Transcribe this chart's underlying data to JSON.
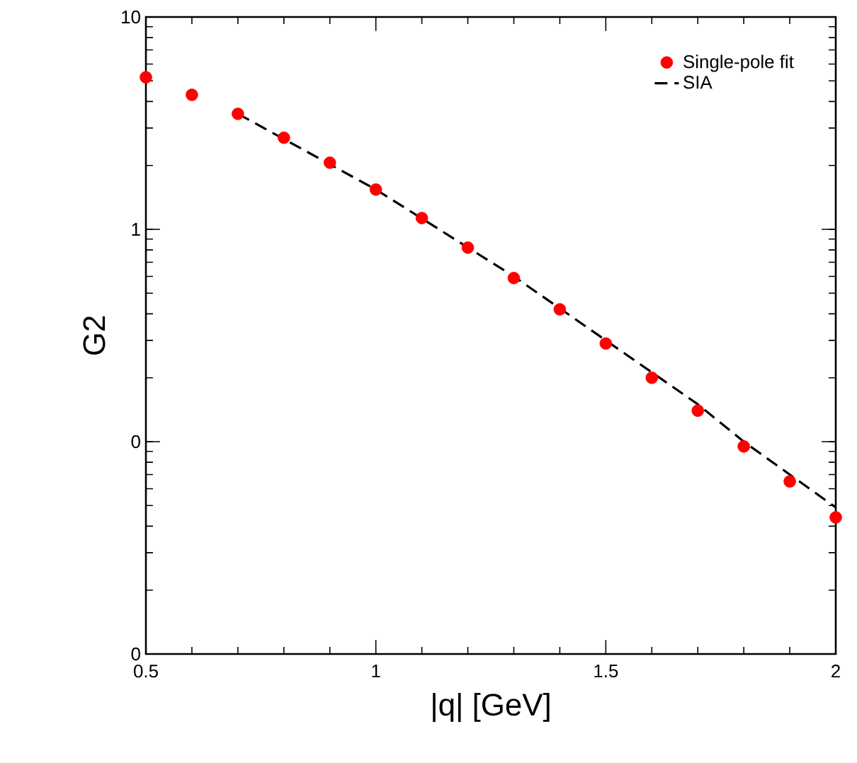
{
  "chart_data": {
    "type": "scatter",
    "xlabel": "|q|  [GeV]",
    "ylabel": "G2",
    "log": "y",
    "xlim": [
      0.5,
      2
    ],
    "xticks": [
      0.5,
      1,
      1.5,
      2
    ],
    "ylim": [
      0.01,
      10
    ],
    "yticks": [
      {
        "value": 0.01,
        "label": "0"
      },
      {
        "value": 0.1,
        "label": "0"
      },
      1,
      10
    ],
    "legend": "top right",
    "grid": false,
    "series": [
      {
        "name": "Single-pole fit",
        "marker": "circle",
        "color": "#ff0000",
        "x": [
          0.5,
          0.6,
          0.7,
          0.8,
          0.9,
          1.0,
          1.1,
          1.2,
          1.3,
          1.4,
          1.5,
          1.6,
          1.7,
          1.8,
          1.9,
          2.0
        ],
        "values": [
          5.2,
          4.3,
          3.5,
          2.7,
          2.06,
          1.54,
          1.13,
          0.82,
          0.59,
          0.42,
          0.29,
          0.2,
          0.14,
          0.095,
          0.065,
          0.044
        ]
      },
      {
        "name": "SIA",
        "type": "line",
        "marker": "none",
        "line_style": "dashed",
        "color": "#000000",
        "x": [
          0.7,
          1.0,
          1.3,
          1.5,
          1.7,
          1.8,
          1.9,
          2.0
        ],
        "values": [
          3.5,
          1.54,
          0.6,
          0.3,
          0.15,
          0.1,
          0.07,
          0.049
        ]
      }
    ]
  }
}
